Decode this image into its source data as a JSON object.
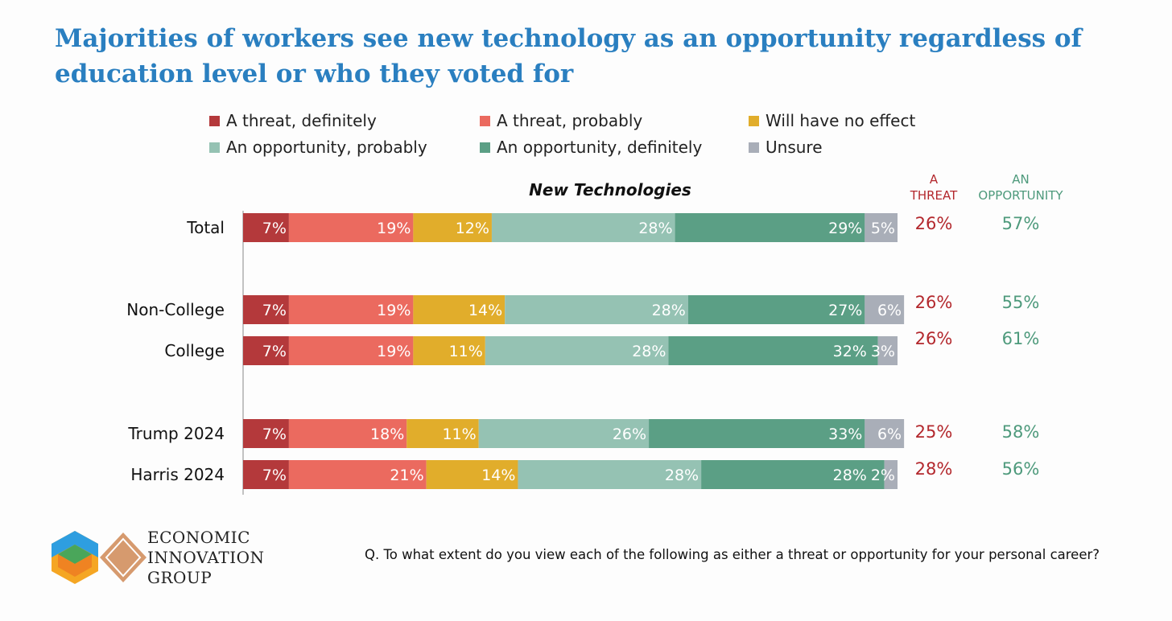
{
  "title": "Majorities of workers see new technology as an opportunity regardless of education level or who they voted for",
  "footnote": "Q. To what extent do you view each of the following as either a threat or opportunity for your personal career?",
  "logo": {
    "line1": "ECONOMIC",
    "line2": "INNOVATION",
    "line3": "GROUP"
  },
  "colors": {
    "threat_text": "#b3282d",
    "opportunity_text": "#4e9a7c",
    "title": "#2a7fc0"
  },
  "chart_data": {
    "type": "bar",
    "orientation": "horizontal-stacked-100",
    "title": "New Technologies",
    "categories": [
      "Total",
      "Non-College",
      "College",
      "Trump 2024",
      "Harris 2024"
    ],
    "series": [
      {
        "name": "A threat, definitely",
        "color": "#b4393b",
        "values": [
          7,
          7,
          7,
          7,
          7
        ]
      },
      {
        "name": "A threat, probably",
        "color": "#eb6a5f",
        "values": [
          19,
          19,
          19,
          18,
          21
        ]
      },
      {
        "name": "Will have no effect",
        "color": "#e1ad2b",
        "values": [
          12,
          14,
          11,
          11,
          14
        ]
      },
      {
        "name": "An opportunity, probably",
        "color": "#95c2b3",
        "values": [
          28,
          28,
          28,
          26,
          28
        ]
      },
      {
        "name": "An opportunity, definitely",
        "color": "#5b9f85",
        "values": [
          29,
          27,
          32,
          33,
          28
        ]
      },
      {
        "name": "Unsure",
        "color": "#a9aeb8",
        "values": [
          5,
          6,
          3,
          6,
          2
        ]
      }
    ],
    "summary_headers": {
      "threat": "A THREAT",
      "opportunity": "AN OPPORTUNITY"
    },
    "summary": {
      "threat": [
        26,
        26,
        26,
        25,
        28
      ],
      "opportunity": [
        57,
        55,
        61,
        58,
        56
      ]
    },
    "xlim": [
      0,
      100
    ],
    "legend": "top"
  }
}
